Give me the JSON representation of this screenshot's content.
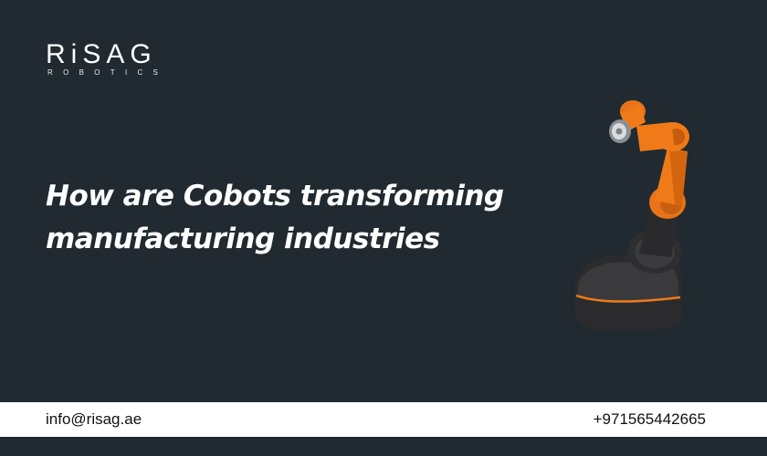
{
  "brand": {
    "name": "RiSAG",
    "tagline": "ROBOTICS",
    "colors": {
      "background": "#202a30",
      "accent": "#f07a18",
      "footer": "#ffffff"
    }
  },
  "headline": {
    "line1": "How are Cobots transforming",
    "line2": "manufacturing industries"
  },
  "illustration": {
    "icon": "robot-arm-icon"
  },
  "footer": {
    "email": "info@risag.ae",
    "phone": "+971565442665"
  }
}
